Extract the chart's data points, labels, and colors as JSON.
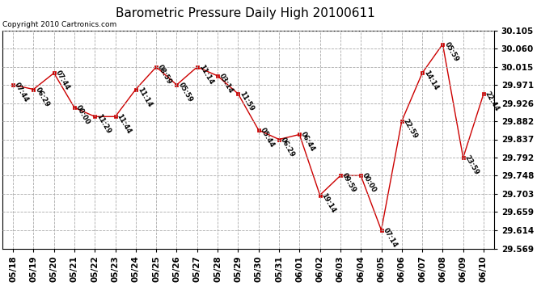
{
  "title": "Barometric Pressure Daily High 20100611",
  "copyright": "Copyright 2010 Cartronics.com",
  "x_labels": [
    "05/18",
    "05/19",
    "05/20",
    "05/21",
    "05/22",
    "05/23",
    "05/24",
    "05/25",
    "05/26",
    "05/27",
    "05/28",
    "05/29",
    "05/30",
    "05/31",
    "06/01",
    "06/02",
    "06/03",
    "06/04",
    "06/05",
    "06/06",
    "06/07",
    "06/08",
    "06/09",
    "06/10"
  ],
  "y_values": [
    29.971,
    29.96,
    30.0,
    29.915,
    29.893,
    29.893,
    29.96,
    30.015,
    29.971,
    30.015,
    29.993,
    29.949,
    29.86,
    29.837,
    29.849,
    29.7,
    29.748,
    29.748,
    29.614,
    29.882,
    30.0,
    30.071,
    29.792,
    29.949
  ],
  "point_labels": [
    "07:44",
    "06:29",
    "07:44",
    "00:00",
    "11:29",
    "11:44",
    "11:14",
    "08:59",
    "05:59",
    "11:14",
    "03:14",
    "11:59",
    "05:44",
    "06:29",
    "06:44",
    "19:14",
    "09:59",
    "00:00",
    "07:14",
    "22:59",
    "14:14",
    "05:59",
    "23:59",
    "22:44"
  ],
  "y_min": 29.569,
  "y_max": 30.105,
  "y_ticks": [
    29.569,
    29.614,
    29.659,
    29.703,
    29.748,
    29.792,
    29.837,
    29.882,
    29.926,
    29.971,
    30.015,
    30.06,
    30.105
  ],
  "line_color": "#cc0000",
  "marker_color": "#cc0000",
  "bg_color": "#ffffff",
  "grid_color": "#aaaaaa",
  "title_fontsize": 11,
  "copyright_fontsize": 6.5,
  "label_fontsize": 6,
  "tick_fontsize": 7.5
}
